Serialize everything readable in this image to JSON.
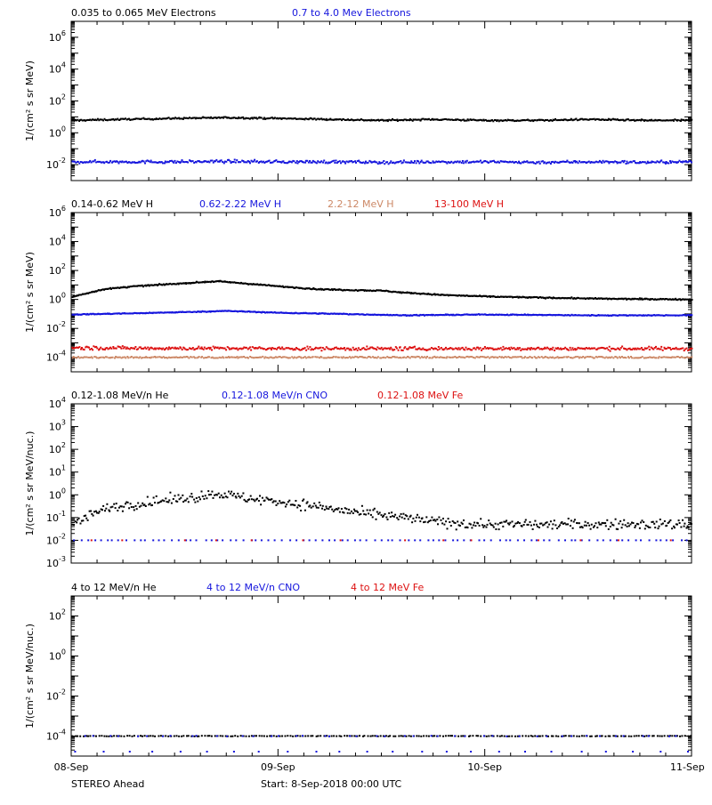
{
  "figure": {
    "x_ticks": [
      "08-Sep",
      "09-Sep",
      "10-Sep",
      "11-Sep"
    ],
    "spacecraft": "STEREO Ahead",
    "start_text": "Start:  8-Sep-2018 00:00 UTC"
  },
  "chart_data": [
    {
      "type": "scatter",
      "y_scale": "log",
      "ylim": [
        0.001,
        10000000
      ],
      "y_ticks": [
        {
          "exp": "-2"
        },
        {
          "exp": "0"
        },
        {
          "exp": "2"
        },
        {
          "exp": "4"
        },
        {
          "exp": "6"
        }
      ],
      "ylabel": "1/(cm² s sr MeV)",
      "x": [
        0,
        1,
        2,
        3
      ],
      "series": [
        {
          "name": "0.035 to 0.065 MeV Electrons",
          "color": "#000000",
          "x_days": [
            0.0,
            0.25,
            0.5,
            0.75,
            1.0,
            1.25,
            1.5,
            1.75,
            2.0,
            2.25,
            2.5,
            2.75,
            3.0
          ],
          "values": [
            6,
            7,
            8,
            9,
            8,
            7,
            6,
            7,
            6,
            6,
            7,
            6,
            6
          ]
        },
        {
          "name": "0.7 to 4.0 Mev Electrons",
          "color": "#1515dd",
          "x_days": [
            0.0,
            0.25,
            0.5,
            0.75,
            1.0,
            1.25,
            1.5,
            1.75,
            2.0,
            2.25,
            2.5,
            2.75,
            3.0
          ],
          "values": [
            0.015,
            0.015,
            0.015,
            0.016,
            0.015,
            0.015,
            0.014,
            0.015,
            0.015,
            0.014,
            0.015,
            0.014,
            0.015
          ]
        }
      ]
    },
    {
      "type": "scatter",
      "y_scale": "log",
      "ylim": [
        1e-05,
        1000000
      ],
      "y_ticks": [
        {
          "exp": "-4"
        },
        {
          "exp": "-2"
        },
        {
          "exp": "0"
        },
        {
          "exp": "2"
        },
        {
          "exp": "4"
        },
        {
          "exp": "6"
        }
      ],
      "ylabel": "1/(cm² s sr MeV)",
      "x": [
        0,
        1,
        2,
        3
      ],
      "series": [
        {
          "name": "0.14-0.62 MeV H",
          "color": "#000000",
          "x_days": [
            0.0,
            0.15,
            0.3,
            0.5,
            0.7,
            0.8,
            1.0,
            1.2,
            1.5,
            1.6,
            1.8,
            2.0,
            2.3,
            2.6,
            3.0
          ],
          "values": [
            1.5,
            5,
            8,
            12,
            18,
            14,
            8,
            5,
            4,
            3,
            2,
            1.6,
            1.3,
            1.1,
            1.0
          ]
        },
        {
          "name": "0.62-2.22 MeV H",
          "color": "#1515dd",
          "x_days": [
            0.0,
            0.3,
            0.6,
            0.75,
            1.0,
            1.3,
            1.6,
            2.0,
            2.5,
            3.0
          ],
          "values": [
            0.09,
            0.11,
            0.14,
            0.16,
            0.12,
            0.1,
            0.08,
            0.09,
            0.08,
            0.08
          ]
        },
        {
          "name": "2.2-12 MeV H",
          "color": "#cc8866",
          "x_days": [
            0.0,
            1.0,
            2.0,
            3.0
          ],
          "values": [
            0.0001,
            0.0001,
            0.0001,
            0.0001
          ]
        },
        {
          "name": "13-100 MeV H",
          "color": "#dd1111",
          "x_days": [
            0.0,
            1.0,
            2.0,
            3.0
          ],
          "values": [
            0.00045,
            0.0004,
            0.0004,
            0.0004
          ]
        }
      ]
    },
    {
      "type": "scatter",
      "y_scale": "log",
      "ylim": [
        0.001,
        10000
      ],
      "y_ticks": [
        {
          "exp": "-3"
        },
        {
          "exp": "-2"
        },
        {
          "exp": "-1"
        },
        {
          "exp": "0"
        },
        {
          "exp": "1"
        },
        {
          "exp": "2"
        },
        {
          "exp": "3"
        },
        {
          "exp": "4"
        }
      ],
      "ylabel": "1/(cm² s sr MeV/nuc.)",
      "x": [
        0,
        1,
        2,
        3
      ],
      "series": [
        {
          "name": "0.12-1.08 MeV/n He",
          "color": "#000000",
          "x_days": [
            0.0,
            0.1,
            0.2,
            0.4,
            0.6,
            0.7,
            0.8,
            1.0,
            1.2,
            1.4,
            1.6,
            1.8,
            2.0,
            2.5,
            3.0
          ],
          "values": [
            0.05,
            0.15,
            0.3,
            0.5,
            0.8,
            1.2,
            0.8,
            0.5,
            0.3,
            0.15,
            0.1,
            0.06,
            0.05,
            0.05,
            0.05
          ]
        },
        {
          "name": "0.12-1.08 MeV/n CNO",
          "color": "#1515dd",
          "x_days": [
            0.0,
            1.0,
            2.0,
            3.0
          ],
          "values": [
            0.01,
            0.01,
            0.01,
            0.01
          ]
        },
        {
          "name": "0.12-1.08 MeV Fe",
          "color": "#dd1111",
          "x_days": [
            0.0,
            1.0,
            2.0,
            3.0
          ],
          "values": [
            0.01,
            0.01,
            0.01,
            0.01
          ]
        }
      ]
    },
    {
      "type": "scatter",
      "y_scale": "log",
      "ylim": [
        1e-05,
        1000
      ],
      "y_ticks": [
        {
          "exp": "-4"
        },
        {
          "exp": "-2"
        },
        {
          "exp": "0"
        },
        {
          "exp": "2"
        }
      ],
      "ylabel": "1/(cm² s sr MeV/nuc.)",
      "x": [
        0,
        1,
        2,
        3
      ],
      "series": [
        {
          "name": "4 to 12 MeV/n He",
          "color": "#000000",
          "x_days": [
            0.0,
            1.0,
            2.0,
            3.0
          ],
          "values": [
            0.0001,
            0.0001,
            0.0001,
            0.0001
          ]
        },
        {
          "name": "4 to 12 MeV/n CNO",
          "color": "#1515dd",
          "x_days": [
            0.0,
            1.0,
            2.0,
            3.0
          ],
          "values": [
            0.0001,
            0.0001,
            0.0001,
            0.0001
          ]
        },
        {
          "name": "4 to 12 MeV Fe",
          "color": "#dd1111",
          "x_days": [],
          "values": []
        }
      ]
    }
  ]
}
